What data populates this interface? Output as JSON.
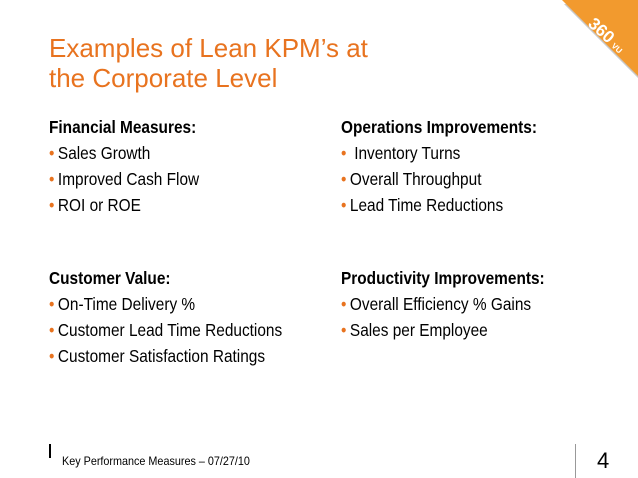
{
  "title": {
    "line1": "Examples of Lean KPM’s at",
    "line2": "the Corporate Level"
  },
  "logo": {
    "text": "360",
    "suffix": "VU",
    "color": "#F29A2E",
    "shadow_color": "#B0B0B0"
  },
  "colors": {
    "accent": "#E8731F",
    "text": "#000000"
  },
  "sections": {
    "financial": {
      "heading": "Financial Measures:",
      "items": [
        "Sales Growth",
        "Improved Cash Flow",
        "ROI or ROE"
      ]
    },
    "operations": {
      "heading": "Operations Improvements:",
      "items": [
        " Inventory Turns",
        "Overall Throughput",
        "Lead Time Reductions"
      ]
    },
    "customer": {
      "heading": "Customer Value:",
      "items": [
        "On-Time Delivery %",
        "Customer Lead Time Reductions",
        "Customer Satisfaction Ratings"
      ]
    },
    "productivity": {
      "heading": "Productivity Improvements:",
      "items": [
        "Overall Efficiency % Gains",
        "Sales per Employee"
      ]
    }
  },
  "bullet_glyph": "•",
  "footer": {
    "text": "Key Performance Measures – 07/27/10",
    "page_number": "4"
  }
}
